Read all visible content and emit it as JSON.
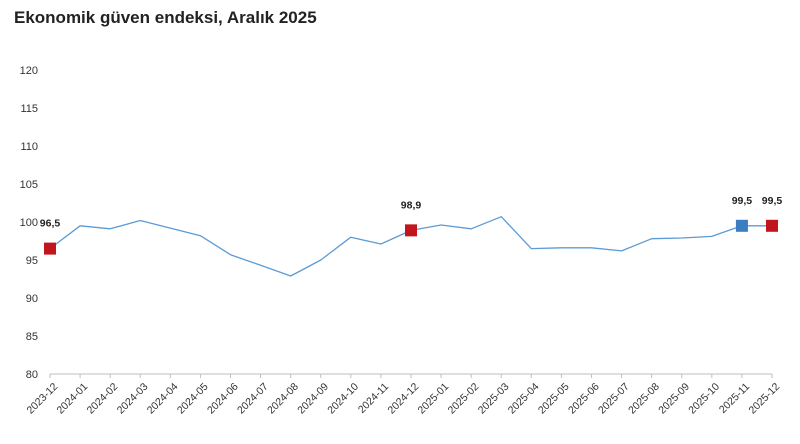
{
  "title": "Ekonomik güven endeksi, Aralık 2025",
  "colors": {
    "line": "#5b9bd5",
    "marker_red": "#c0161c",
    "marker_blue": "#3a7dc1",
    "axis": "#bfbfbf"
  },
  "chart_data": {
    "type": "line",
    "title": "Ekonomik güven endeksi, Aralık 2025",
    "xlabel": "",
    "ylabel": "",
    "ylim": [
      80,
      120
    ],
    "yticks": [
      "80",
      "85",
      "90",
      "95",
      "100",
      "105",
      "110",
      "115",
      "120"
    ],
    "grid": false,
    "categories": [
      "2023-12",
      "2024-01",
      "2024-02",
      "2024-03",
      "2024-04",
      "2024-05",
      "2024-06",
      "2024-07",
      "2024-08",
      "2024-09",
      "2024-10",
      "2024-11",
      "2024-12",
      "2025-01",
      "2025-02",
      "2025-03",
      "2025-04",
      "2025-05",
      "2025-06",
      "2025-07",
      "2025-08",
      "2025-09",
      "2025-10",
      "2025-11",
      "2025-12"
    ],
    "series": [
      {
        "values": [
          96.5,
          99.5,
          99.1,
          100.2,
          99.2,
          98.2,
          95.7,
          94.3,
          92.9,
          95.0,
          98.0,
          97.1,
          98.9,
          99.6,
          99.1,
          100.7,
          96.5,
          96.6,
          96.6,
          96.2,
          97.8,
          97.9,
          98.1,
          99.5,
          99.5
        ]
      }
    ],
    "markers": [
      {
        "category": "2023-12",
        "value": 96.5,
        "label": "96,5",
        "color": "#c0161c"
      },
      {
        "category": "2024-12",
        "value": 98.9,
        "label": "98,9",
        "color": "#c0161c"
      },
      {
        "category": "2025-11",
        "value": 99.5,
        "label": "99,5",
        "color": "#3a7dc1"
      },
      {
        "category": "2025-12",
        "value": 99.5,
        "label": "99,5",
        "color": "#c0161c"
      }
    ]
  }
}
